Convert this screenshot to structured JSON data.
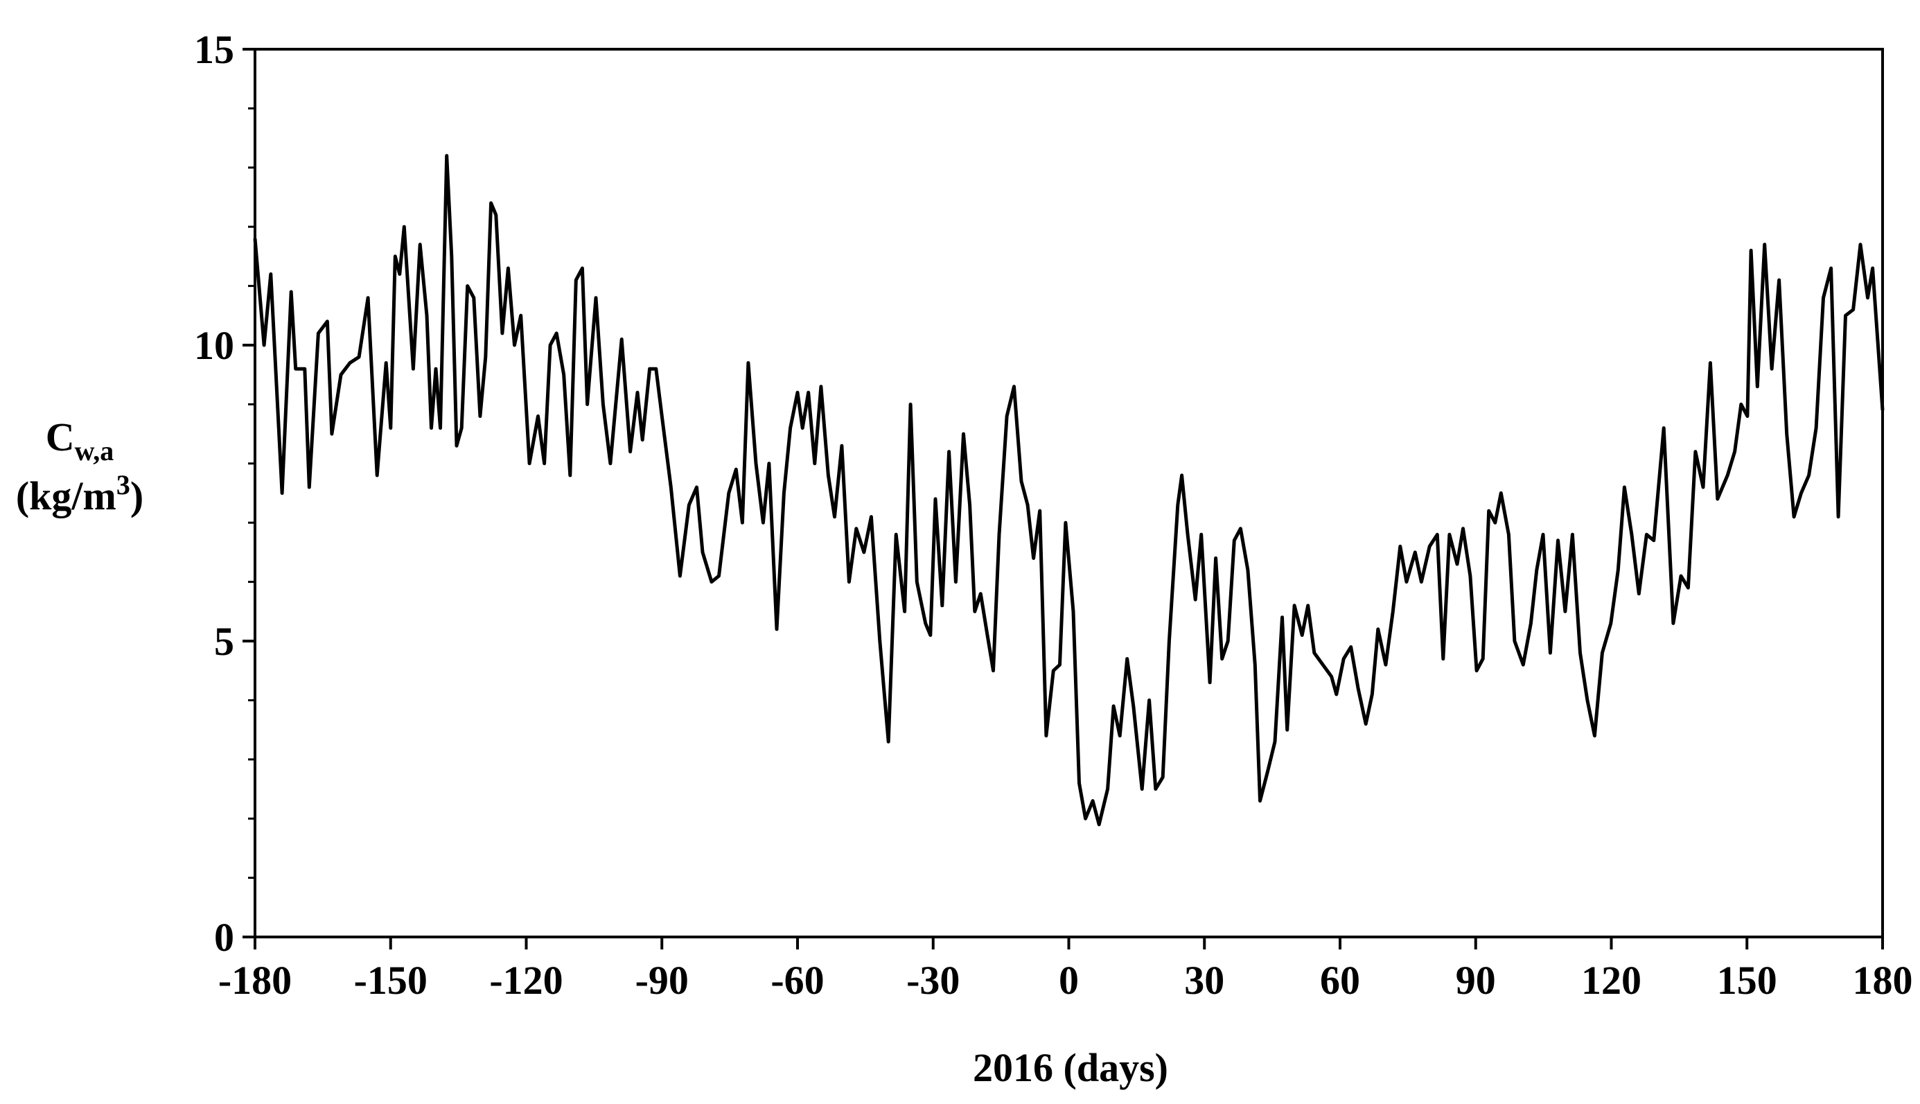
{
  "chart_data": {
    "type": "line",
    "xlabel": "2016 (days)",
    "ylabel": [
      "C",
      "w,a",
      "(kg/m",
      "3",
      ")"
    ],
    "xlim": [
      -180,
      180
    ],
    "xticks": [
      -180,
      -150,
      -120,
      -90,
      -60,
      -30,
      0,
      30,
      60,
      90,
      120,
      150,
      180
    ],
    "ylim": [
      0,
      15
    ],
    "yticks": [
      0,
      5,
      10,
      15
    ],
    "yminorticks": [
      1,
      2,
      3,
      4,
      6,
      7,
      8,
      9,
      11,
      12,
      13,
      14
    ],
    "color": "#000000",
    "x": [
      -180,
      -178,
      -176.5,
      -174,
      -172,
      -171,
      -169,
      -168,
      -166,
      -164,
      -163,
      -161,
      -159,
      -157,
      -155,
      -153,
      -151,
      -150,
      -149,
      -148,
      -147,
      -145,
      -143.5,
      -142,
      -141,
      -140,
      -139,
      -137.6,
      -136.5,
      -135.4,
      -134.3,
      -133,
      -131.6,
      -130.2,
      -129,
      -127.8,
      -126.7,
      -125.3,
      -124,
      -122.6,
      -121.2,
      -119.3,
      -117.4,
      -116,
      -114.7,
      -113.3,
      -111.7,
      -110.3,
      -109,
      -107.6,
      -106.5,
      -104.6,
      -103,
      -101.4,
      -98.9,
      -97,
      -95.4,
      -94.3,
      -92.7,
      -91.3,
      -90,
      -88,
      -86,
      -84,
      -82.3,
      -81,
      -79,
      -77.4,
      -75.2,
      -73.6,
      -72.2,
      -70.9,
      -69.2,
      -67.6,
      -66.3,
      -64.6,
      -63,
      -61.6,
      -60,
      -58.9,
      -57.6,
      -56.2,
      -54.8,
      -53.2,
      -51.8,
      -50.2,
      -48.6,
      -47,
      -45.3,
      -43.7,
      -41.8,
      -39.9,
      -38.2,
      -36.3,
      -35,
      -33.6,
      -31.7,
      -30.6,
      -29.5,
      -28,
      -26.5,
      -25,
      -23.3,
      -21.9,
      -20.8,
      -19.5,
      -18,
      -16.7,
      -15.4,
      -13.7,
      -12.1,
      -10.5,
      -9.1,
      -7.8,
      -6.4,
      -5,
      -3.4,
      -2,
      -0.7,
      1,
      2.3,
      3.7,
      5.3,
      6.7,
      8.6,
      9.9,
      11.3,
      12.9,
      14.3,
      16.2,
      17.8,
      19.2,
      20.8,
      22.2,
      24.1,
      25,
      26.3,
      28,
      29.3,
      31.2,
      32.5,
      33.9,
      35.2,
      36.6,
      38,
      39.6,
      41.2,
      42.3,
      44,
      45.6,
      47.2,
      48.3,
      49.9,
      51.6,
      52.9,
      54.3,
      56.2,
      58.1,
      59.2,
      60.8,
      62.4,
      64,
      65.7,
      67.1,
      68.4,
      70.1,
      71.7,
      73.3,
      74.7,
      76.6,
      78,
      79.8,
      81.5,
      82.8,
      84.2,
      85.9,
      87.2,
      88.8,
      90.2,
      91.6,
      92.9,
      94.3,
      95.6,
      97.3,
      98.6,
      100.5,
      102.2,
      103.5,
      104.9,
      106.5,
      108.2,
      109.8,
      111.4,
      113.1,
      114.7,
      116.3,
      118,
      119.9,
      121.5,
      122.9,
      124.5,
      126.1,
      127.8,
      129.4,
      131.6,
      133.7,
      135.4,
      137,
      138.6,
      140.3,
      141.9,
      143.5,
      145.7,
      147.3,
      148.7,
      150.1,
      150.9,
      152.3,
      153.9,
      155.5,
      157.1,
      158.8,
      160.4,
      162,
      163.7,
      165.3,
      166.9,
      168.6,
      170.2,
      171.8,
      173.5,
      175.1,
      176.7,
      177.8,
      180
    ],
    "values": [
      11.8,
      10.0,
      11.2,
      7.5,
      10.9,
      9.6,
      9.6,
      7.6,
      10.2,
      10.4,
      8.5,
      9.5,
      9.7,
      9.8,
      10.8,
      7.8,
      9.7,
      8.6,
      11.5,
      11.2,
      12.0,
      9.6,
      11.7,
      10.5,
      8.6,
      9.6,
      8.6,
      13.2,
      11.5,
      8.3,
      8.6,
      11.0,
      10.8,
      8.8,
      9.8,
      12.4,
      12.2,
      10.2,
      11.3,
      10.0,
      10.5,
      8.0,
      8.8,
      8.0,
      10.0,
      10.2,
      9.5,
      7.8,
      11.1,
      11.3,
      9.0,
      10.8,
      9.0,
      8.0,
      10.1,
      8.2,
      9.2,
      8.4,
      9.6,
      9.6,
      8.8,
      7.6,
      6.1,
      7.3,
      7.6,
      6.5,
      6.0,
      6.1,
      7.5,
      7.9,
      7.0,
      9.7,
      8.0,
      7.0,
      8.0,
      5.2,
      7.5,
      8.6,
      9.2,
      8.6,
      9.2,
      8.0,
      9.3,
      7.8,
      7.1,
      8.3,
      6.0,
      6.9,
      6.5,
      7.1,
      5.0,
      3.3,
      6.8,
      5.5,
      9.0,
      6.0,
      5.3,
      5.1,
      7.4,
      5.6,
      8.2,
      6.0,
      8.5,
      7.3,
      5.5,
      5.8,
      5.1,
      4.5,
      6.8,
      8.8,
      9.3,
      7.7,
      7.3,
      6.4,
      7.2,
      3.4,
      4.5,
      4.6,
      7.0,
      5.5,
      2.6,
      2.0,
      2.3,
      1.9,
      2.5,
      3.9,
      3.4,
      4.7,
      3.9,
      2.5,
      4.0,
      2.5,
      2.7,
      5.0,
      7.3,
      7.8,
      6.8,
      5.7,
      6.8,
      4.3,
      6.4,
      4.7,
      5.0,
      6.7,
      6.9,
      6.2,
      4.6,
      2.3,
      2.8,
      3.3,
      5.4,
      3.5,
      5.6,
      5.1,
      5.6,
      4.8,
      4.6,
      4.4,
      4.1,
      4.7,
      4.9,
      4.2,
      3.6,
      4.1,
      5.2,
      4.6,
      5.5,
      6.6,
      6.0,
      6.5,
      6.0,
      6.6,
      6.8,
      4.7,
      6.8,
      6.3,
      6.9,
      6.1,
      4.5,
      4.7,
      7.2,
      7.0,
      7.5,
      6.8,
      5.0,
      4.6,
      5.3,
      6.2,
      6.8,
      4.8,
      6.7,
      5.5,
      6.8,
      4.8,
      4.0,
      3.4,
      4.8,
      5.3,
      6.2,
      7.6,
      6.8,
      5.8,
      6.8,
      6.7,
      8.6,
      5.3,
      6.1,
      5.9,
      8.2,
      7.6,
      9.7,
      7.4,
      7.8,
      8.2,
      9.0,
      8.8,
      11.6,
      9.3,
      11.7,
      9.6,
      11.1,
      8.5,
      7.1,
      7.5,
      7.8,
      8.6,
      10.8,
      11.3,
      7.1,
      10.5,
      10.6,
      11.7,
      10.8,
      11.3,
      8.9
    ]
  }
}
